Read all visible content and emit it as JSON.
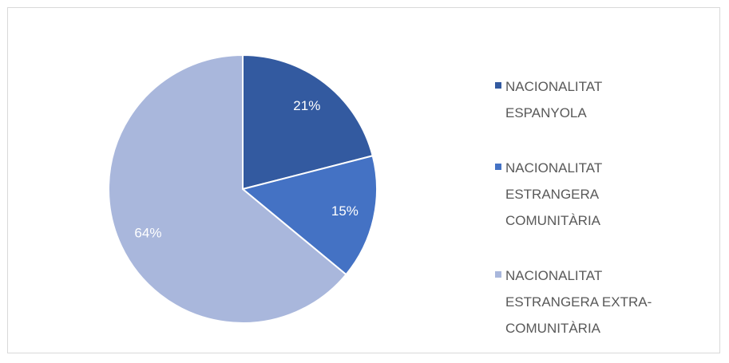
{
  "chart_data": {
    "type": "pie",
    "categories": [
      "NACIONALITAT ESPANYOLA",
      "NACIONALITAT ESTRANGERA COMUNITÀRIA",
      "NACIONALITAT ESTRANGERA EXTRA-COMUNITÀRIA"
    ],
    "values": [
      21,
      15,
      64
    ],
    "value_labels": [
      "21%",
      "15%",
      "64%"
    ],
    "colors": [
      "#335aa0",
      "#4472c4",
      "#a9b7dc"
    ],
    "legend": "right"
  }
}
